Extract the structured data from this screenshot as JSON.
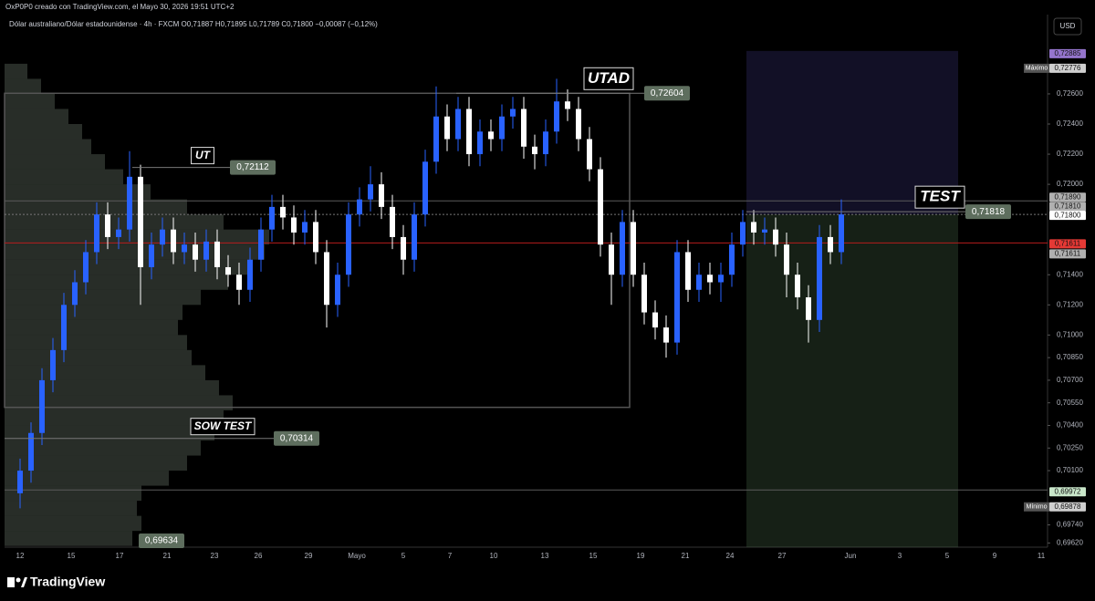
{
  "header": {
    "creator": "OxP0P0 creado con TradingView.com, el Mayo 30, 2026 19:51 UTC+2",
    "symbol_line": "Dólar australiano/Dólar estadounidense · 4h · FXCM  O0,71887  H0,71895  L0,71789  C0,71800  −0,00087 (−0,12%)",
    "currency": "USD"
  },
  "chart_data": {
    "type": "candlestick",
    "up_color": "#2962ff",
    "down_color": "#ffffff",
    "ylim": [
      0.69592,
      0.73102
    ],
    "yticks": [
      {
        "value": 0.726,
        "label": "0,72600"
      },
      {
        "value": 0.724,
        "label": "0,72400"
      },
      {
        "value": 0.722,
        "label": "0,72200"
      },
      {
        "value": 0.72,
        "label": "0,72000"
      },
      {
        "value": 0.714,
        "label": "0,71400"
      },
      {
        "value": 0.712,
        "label": "0,71200"
      },
      {
        "value": 0.71,
        "label": "0,71000"
      },
      {
        "value": 0.7085,
        "label": "0,70850"
      },
      {
        "value": 0.707,
        "label": "0,70700"
      },
      {
        "value": 0.7055,
        "label": "0,70550"
      },
      {
        "value": 0.704,
        "label": "0,70400"
      },
      {
        "value": 0.7025,
        "label": "0,70250"
      },
      {
        "value": 0.701,
        "label": "0,70100"
      },
      {
        "value": 0.6974,
        "label": "0,69740"
      },
      {
        "value": 0.6962,
        "label": "0,69620"
      }
    ],
    "x_labels": [
      "12",
      "15",
      "17",
      "21",
      "23",
      "26",
      "29",
      "Mayo",
      "5",
      "7",
      "10",
      "13",
      "15",
      "19",
      "21",
      "24",
      "27",
      "Jun",
      "3",
      "5",
      "9",
      "11"
    ],
    "candles": [
      [
        0.6995,
        0.7018,
        0.6985,
        0.701
      ],
      [
        0.701,
        0.7042,
        0.7002,
        0.7035
      ],
      [
        0.7035,
        0.7078,
        0.7027,
        0.707
      ],
      [
        0.707,
        0.7098,
        0.7062,
        0.709
      ],
      [
        0.709,
        0.7128,
        0.7082,
        0.712
      ],
      [
        0.712,
        0.7143,
        0.7112,
        0.7135
      ],
      [
        0.7135,
        0.7163,
        0.7127,
        0.7155
      ],
      [
        0.7155,
        0.7188,
        0.7147,
        0.718
      ],
      [
        0.718,
        0.7188,
        0.7157,
        0.7165
      ],
      [
        0.7165,
        0.7178,
        0.7157,
        0.717
      ],
      [
        0.717,
        0.7222,
        0.7162,
        0.7205
      ],
      [
        0.7205,
        0.7213,
        0.712,
        0.7145
      ],
      [
        0.7145,
        0.7168,
        0.7137,
        0.716
      ],
      [
        0.716,
        0.7178,
        0.7152,
        0.717
      ],
      [
        0.717,
        0.7178,
        0.7147,
        0.7155
      ],
      [
        0.7155,
        0.7168,
        0.7147,
        0.716
      ],
      [
        0.716,
        0.7168,
        0.7142,
        0.715
      ],
      [
        0.715,
        0.717,
        0.7142,
        0.7162
      ],
      [
        0.7162,
        0.717,
        0.7137,
        0.7145
      ],
      [
        0.7145,
        0.7153,
        0.7132,
        0.714
      ],
      [
        0.714,
        0.7148,
        0.712,
        0.713
      ],
      [
        0.713,
        0.7158,
        0.7122,
        0.715
      ],
      [
        0.715,
        0.7178,
        0.7142,
        0.717
      ],
      [
        0.717,
        0.7193,
        0.7162,
        0.7185
      ],
      [
        0.7185,
        0.7193,
        0.717,
        0.7178
      ],
      [
        0.7178,
        0.7186,
        0.716,
        0.7168
      ],
      [
        0.7168,
        0.7183,
        0.716,
        0.7175
      ],
      [
        0.7175,
        0.7183,
        0.7147,
        0.7155
      ],
      [
        0.7155,
        0.7163,
        0.7105,
        0.712
      ],
      [
        0.712,
        0.7148,
        0.7112,
        0.714
      ],
      [
        0.714,
        0.7188,
        0.7132,
        0.718
      ],
      [
        0.718,
        0.7198,
        0.7172,
        0.719
      ],
      [
        0.719,
        0.7212,
        0.7182,
        0.72
      ],
      [
        0.72,
        0.7208,
        0.7177,
        0.7185
      ],
      [
        0.7185,
        0.7193,
        0.7157,
        0.7165
      ],
      [
        0.7165,
        0.7173,
        0.714,
        0.715
      ],
      [
        0.715,
        0.7188,
        0.7142,
        0.718
      ],
      [
        0.718,
        0.7223,
        0.7172,
        0.7215
      ],
      [
        0.7215,
        0.7265,
        0.7207,
        0.7245
      ],
      [
        0.7245,
        0.7253,
        0.7222,
        0.723
      ],
      [
        0.723,
        0.7258,
        0.7222,
        0.725
      ],
      [
        0.725,
        0.7258,
        0.7212,
        0.722
      ],
      [
        0.722,
        0.7243,
        0.7212,
        0.7235
      ],
      [
        0.7235,
        0.7243,
        0.7222,
        0.723
      ],
      [
        0.723,
        0.7253,
        0.7222,
        0.7245
      ],
      [
        0.7245,
        0.7258,
        0.7237,
        0.725
      ],
      [
        0.725,
        0.7258,
        0.7217,
        0.7225
      ],
      [
        0.7225,
        0.7233,
        0.721,
        0.722
      ],
      [
        0.722,
        0.7243,
        0.7212,
        0.7235
      ],
      [
        0.7235,
        0.727,
        0.7227,
        0.7255
      ],
      [
        0.7255,
        0.7263,
        0.7242,
        0.725
      ],
      [
        0.725,
        0.7258,
        0.7222,
        0.723
      ],
      [
        0.723,
        0.7238,
        0.7202,
        0.721
      ],
      [
        0.721,
        0.7218,
        0.7152,
        0.716
      ],
      [
        0.716,
        0.7168,
        0.712,
        0.714
      ],
      [
        0.714,
        0.7183,
        0.7132,
        0.7175
      ],
      [
        0.7175,
        0.7183,
        0.7132,
        0.714
      ],
      [
        0.714,
        0.7148,
        0.7107,
        0.7115
      ],
      [
        0.7115,
        0.7123,
        0.7097,
        0.7105
      ],
      [
        0.7105,
        0.7113,
        0.7085,
        0.7095
      ],
      [
        0.7095,
        0.7163,
        0.7087,
        0.7155
      ],
      [
        0.7155,
        0.7163,
        0.7122,
        0.713
      ],
      [
        0.713,
        0.7148,
        0.7122,
        0.714
      ],
      [
        0.714,
        0.7148,
        0.7127,
        0.7135
      ],
      [
        0.7135,
        0.7148,
        0.7122,
        0.714
      ],
      [
        0.714,
        0.7168,
        0.7132,
        0.716
      ],
      [
        0.716,
        0.7183,
        0.7152,
        0.7175
      ],
      [
        0.7175,
        0.7183,
        0.716,
        0.7168
      ],
      [
        0.7168,
        0.7178,
        0.716,
        0.717
      ],
      [
        0.717,
        0.7178,
        0.7152,
        0.716
      ],
      [
        0.716,
        0.7168,
        0.7125,
        0.714
      ],
      [
        0.714,
        0.7148,
        0.7117,
        0.7125
      ],
      [
        0.7125,
        0.7133,
        0.7095,
        0.711
      ],
      [
        0.711,
        0.7173,
        0.7102,
        0.7165
      ],
      [
        0.7165,
        0.7173,
        0.7147,
        0.7155
      ],
      [
        0.7155,
        0.719,
        0.7147,
        0.718
      ]
    ],
    "volume_profile": {
      "color": "#8fa08f",
      "prices": [
        0.6965,
        0.6975,
        0.6985,
        0.6995,
        0.7005,
        0.7015,
        0.7025,
        0.7035,
        0.7045,
        0.7055,
        0.7065,
        0.7075,
        0.7085,
        0.7095,
        0.7105,
        0.7115,
        0.7125,
        0.7135,
        0.7145,
        0.7155,
        0.7165,
        0.7175,
        0.7185,
        0.7195,
        0.7205,
        0.7215,
        0.7225,
        0.7235,
        0.7245,
        0.7255,
        0.7265,
        0.7275
      ],
      "values": [
        140,
        150,
        145,
        150,
        180,
        200,
        215,
        230,
        240,
        250,
        235,
        220,
        205,
        200,
        190,
        195,
        215,
        245,
        270,
        285,
        290,
        240,
        200,
        160,
        130,
        110,
        95,
        85,
        70,
        55,
        40,
        25
      ]
    },
    "range_box": {
      "top": 0.72604,
      "bottom": 0.7052
    },
    "position": {
      "target": 0.72885,
      "entry": 0.718
    },
    "levels": [
      {
        "value": 0.7189,
        "color": "#5a5a5a"
      },
      {
        "value": 0.718,
        "color": "#777777",
        "dashed": true
      },
      {
        "value": 0.71611,
        "color": "#b71c1c"
      },
      {
        "value": 0.69972,
        "color": "#5a5a5a"
      }
    ],
    "annotations": [
      {
        "text": "UT",
        "value": 0.72112,
        "label": "0,72112"
      },
      {
        "text": "UTAD",
        "value": 0.72604,
        "label": "0,72604"
      },
      {
        "text": "TEST",
        "value": 0.71818,
        "label": "0,71818"
      },
      {
        "text": "SOW TEST",
        "value": 0.70314,
        "label": "0,70314"
      },
      {
        "value": 0.69634,
        "label": "0,69634"
      }
    ],
    "price_tags": [
      {
        "value": 0.72885,
        "label": "0,72885",
        "color": "#9575cd"
      },
      {
        "value": 0.72776,
        "label": "0,72776",
        "color": "#cfcfcf",
        "note": "Máximo"
      },
      {
        "value": 0.7189,
        "label": "0,71890",
        "color": "#b0b0b0"
      },
      {
        "value": 0.7181,
        "label": "0,71810",
        "color": "#b0b0b0"
      },
      {
        "value": 0.718,
        "label": "0,71800",
        "color": "#ffffff"
      },
      {
        "value": 0.71611,
        "label": "0,71611",
        "color": "#e53935"
      },
      {
        "value": 0.71611,
        "label": "0,71611",
        "color": "#b0b0b0"
      },
      {
        "value": 0.69972,
        "label": "0,69972",
        "color": "#c8e6c9"
      },
      {
        "value": 0.69878,
        "label": "0,69878",
        "color": "#cfcfcf",
        "note": "Mínimo"
      }
    ]
  },
  "footer": {
    "brand": "TradingView"
  }
}
